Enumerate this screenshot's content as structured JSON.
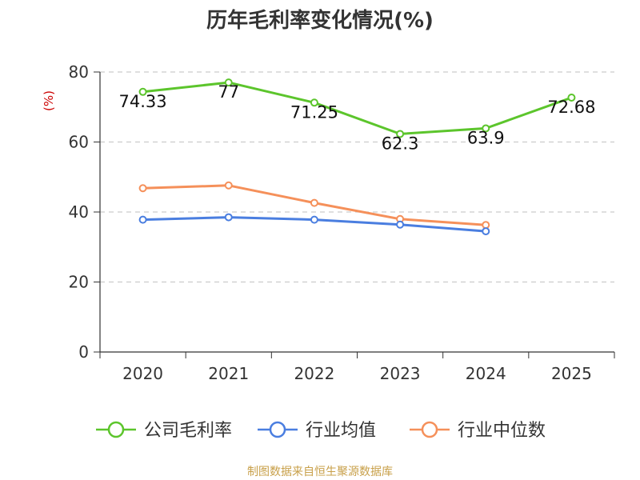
{
  "chart_data": {
    "type": "line",
    "title": "历年毛利率变化情况(%)",
    "ylabel": "(%)",
    "xlabel": "",
    "categories": [
      "2020",
      "2021",
      "2022",
      "2023",
      "2024",
      "2025"
    ],
    "ylim": [
      0,
      80
    ],
    "yticks": [
      0,
      20,
      40,
      60,
      80
    ],
    "grid": true,
    "legend_position": "bottom",
    "series": [
      {
        "name": "公司毛利率",
        "color": "#5cc52c",
        "values": [
          74.33,
          77,
          71.25,
          62.3,
          63.9,
          72.68
        ],
        "labels": [
          "74.33",
          "77",
          "71.25",
          "62.3",
          "63.9",
          "72.68"
        ]
      },
      {
        "name": "行业均值",
        "color": "#4a7ee0",
        "values": [
          37.8,
          38.5,
          37.8,
          36.4,
          34.5,
          null
        ],
        "labels": null
      },
      {
        "name": "行业中位数",
        "color": "#f5905a",
        "values": [
          46.8,
          47.6,
          42.6,
          38.0,
          36.3,
          null
        ],
        "labels": null
      }
    ],
    "source": "制图数据来自恒生聚源数据库"
  }
}
